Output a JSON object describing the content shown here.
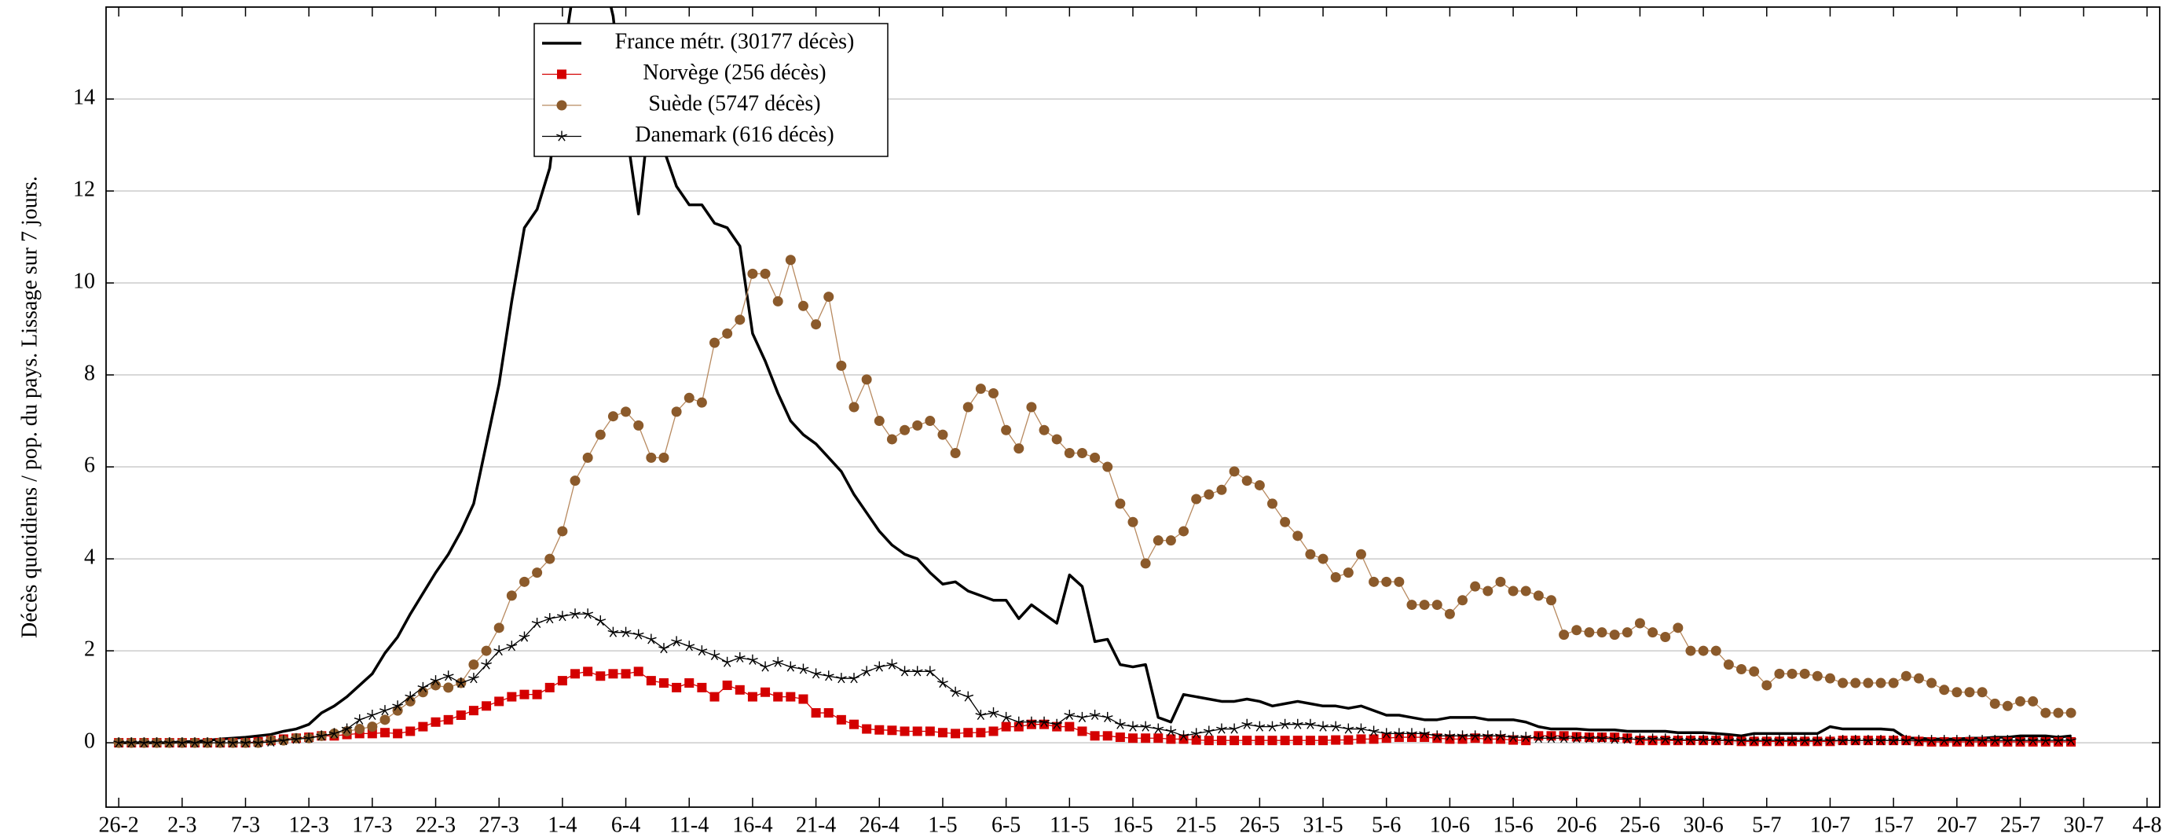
{
  "chart_data": {
    "type": "line",
    "y_label": "Décès quotidiens / pop. du pays. Lissage sur 7 jours.",
    "xlim": [
      -1,
      161
    ],
    "ylim": [
      -1.4,
      16
    ],
    "xticks": [
      {
        "value": 0,
        "label": "26-2"
      },
      {
        "value": 5,
        "label": "2-3"
      },
      {
        "value": 10,
        "label": "7-3"
      },
      {
        "value": 15,
        "label": "12-3"
      },
      {
        "value": 20,
        "label": "17-3"
      },
      {
        "value": 25,
        "label": "22-3"
      },
      {
        "value": 30,
        "label": "27-3"
      },
      {
        "value": 35,
        "label": "1-4"
      },
      {
        "value": 40,
        "label": "6-4"
      },
      {
        "value": 45,
        "label": "11-4"
      },
      {
        "value": 50,
        "label": "16-4"
      },
      {
        "value": 55,
        "label": "21-4"
      },
      {
        "value": 60,
        "label": "26-4"
      },
      {
        "value": 65,
        "label": "1-5"
      },
      {
        "value": 70,
        "label": "6-5"
      },
      {
        "value": 75,
        "label": "11-5"
      },
      {
        "value": 80,
        "label": "16-5"
      },
      {
        "value": 85,
        "label": "21-5"
      },
      {
        "value": 90,
        "label": "26-5"
      },
      {
        "value": 95,
        "label": "31-5"
      },
      {
        "value": 100,
        "label": "5-6"
      },
      {
        "value": 105,
        "label": "10-6"
      },
      {
        "value": 110,
        "label": "15-6"
      },
      {
        "value": 115,
        "label": "20-6"
      },
      {
        "value": 120,
        "label": "25-6"
      },
      {
        "value": 125,
        "label": "30-6"
      },
      {
        "value": 130,
        "label": "5-7"
      },
      {
        "value": 135,
        "label": "10-7"
      },
      {
        "value": 140,
        "label": "15-7"
      },
      {
        "value": 145,
        "label": "20-7"
      },
      {
        "value": 150,
        "label": "25-7"
      },
      {
        "value": 155,
        "label": "30-7"
      },
      {
        "value": 160,
        "label": "4-8"
      }
    ],
    "yticks": [
      0,
      2,
      4,
      6,
      8,
      10,
      12,
      14
    ],
    "grid": "y",
    "legend": "top",
    "x": [
      0,
      1,
      2,
      3,
      4,
      5,
      6,
      7,
      8,
      9,
      10,
      11,
      12,
      13,
      14,
      15,
      16,
      17,
      18,
      19,
      20,
      21,
      22,
      23,
      24,
      25,
      26,
      27,
      28,
      29,
      30,
      31,
      32,
      33,
      34,
      35,
      36,
      37,
      38,
      39,
      40,
      41,
      42,
      43,
      44,
      45,
      46,
      47,
      48,
      49,
      50,
      51,
      52,
      53,
      54,
      55,
      56,
      57,
      58,
      59,
      60,
      61,
      62,
      63,
      64,
      65,
      66,
      67,
      68,
      69,
      70,
      71,
      72,
      73,
      74,
      75,
      76,
      77,
      78,
      79,
      80,
      81,
      82,
      83,
      84,
      85,
      86,
      87,
      88,
      89,
      90,
      91,
      92,
      93,
      94,
      95,
      96,
      97,
      98,
      99,
      100,
      101,
      102,
      103,
      104,
      105,
      106,
      107,
      108,
      109,
      110,
      111,
      112,
      113,
      114,
      115,
      116,
      117,
      118,
      119,
      120,
      121,
      122,
      123,
      124,
      125,
      126,
      127,
      128,
      129,
      130,
      131,
      132,
      133,
      134,
      135,
      136,
      137,
      138,
      139,
      140,
      141,
      142,
      143,
      144,
      145,
      146,
      147,
      148,
      149,
      150,
      151,
      152,
      153,
      154
    ],
    "series": [
      {
        "name": "France métr. (30177 décès)",
        "color": "#000000",
        "marker": "none",
        "values": [
          0,
          0,
          0,
          0,
          0,
          0.02,
          0.03,
          0.05,
          0.08,
          0.1,
          0.12,
          0.15,
          0.18,
          0.25,
          0.3,
          0.4,
          0.65,
          0.8,
          1.0,
          1.25,
          1.5,
          1.95,
          2.3,
          2.8,
          3.25,
          3.7,
          4.1,
          4.6,
          5.2,
          6.5,
          7.8,
          9.6,
          11.2,
          11.6,
          12.5,
          14.8,
          16.6,
          17.3,
          17.0,
          15.8,
          13.4,
          11.5,
          14.0,
          12.9,
          12.1,
          11.7,
          11.7,
          11.3,
          11.2,
          10.8,
          8.9,
          8.3,
          7.6,
          7.0,
          6.7,
          6.5,
          6.2,
          5.9,
          5.4,
          5.0,
          4.6,
          4.3,
          4.1,
          4.0,
          3.7,
          3.45,
          3.5,
          3.3,
          3.2,
          3.1,
          3.1,
          2.7,
          3.0,
          2.8,
          2.6,
          3.65,
          3.4,
          2.2,
          2.25,
          1.7,
          1.65,
          1.7,
          0.55,
          0.45,
          1.05,
          1.0,
          0.95,
          0.9,
          0.9,
          0.95,
          0.9,
          0.8,
          0.85,
          0.9,
          0.85,
          0.8,
          0.8,
          0.75,
          0.8,
          0.7,
          0.6,
          0.6,
          0.55,
          0.5,
          0.5,
          0.55,
          0.55,
          0.55,
          0.5,
          0.5,
          0.5,
          0.45,
          0.35,
          0.3,
          0.3,
          0.3,
          0.28,
          0.28,
          0.28,
          0.25,
          0.25,
          0.25,
          0.25,
          0.22,
          0.22,
          0.22,
          0.2,
          0.18,
          0.15,
          0.2,
          0.2,
          0.2,
          0.2,
          0.2,
          0.2,
          0.35,
          0.3,
          0.3,
          0.3,
          0.3,
          0.28,
          0.1,
          0.1,
          0.08,
          0.08,
          0.08,
          0.1,
          0.1,
          0.12,
          0.12,
          0.15,
          0.15,
          0.15,
          0.12,
          0.15
        ]
      },
      {
        "name": "Norvège (256 décès)",
        "color": "#d40000",
        "marker": "square",
        "values": [
          0,
          0,
          0,
          0,
          0,
          0,
          0,
          0,
          0,
          0,
          0,
          0.02,
          0.05,
          0.08,
          0.1,
          0.12,
          0.15,
          0.15,
          0.18,
          0.2,
          0.2,
          0.22,
          0.2,
          0.25,
          0.35,
          0.45,
          0.5,
          0.6,
          0.7,
          0.8,
          0.9,
          1.0,
          1.05,
          1.05,
          1.2,
          1.35,
          1.5,
          1.55,
          1.45,
          1.5,
          1.5,
          1.55,
          1.35,
          1.3,
          1.2,
          1.3,
          1.2,
          1.0,
          1.25,
          1.15,
          1.0,
          1.1,
          1.0,
          1.0,
          0.95,
          0.65,
          0.65,
          0.5,
          0.4,
          0.3,
          0.28,
          0.27,
          0.25,
          0.25,
          0.25,
          0.22,
          0.2,
          0.22,
          0.22,
          0.25,
          0.35,
          0.35,
          0.4,
          0.4,
          0.35,
          0.35,
          0.25,
          0.15,
          0.15,
          0.12,
          0.1,
          0.1,
          0.1,
          0.08,
          0.08,
          0.06,
          0.05,
          0.05,
          0.05,
          0.05,
          0.05,
          0.05,
          0.05,
          0.05,
          0.05,
          0.05,
          0.06,
          0.06,
          0.08,
          0.08,
          0.1,
          0.12,
          0.12,
          0.12,
          0.1,
          0.08,
          0.08,
          0.1,
          0.08,
          0.08,
          0.06,
          0.05,
          0.15,
          0.15,
          0.15,
          0.13,
          0.12,
          0.12,
          0.12,
          0.1,
          0.05,
          0.05,
          0.05,
          0.05,
          0.05,
          0.05,
          0.05,
          0.05,
          0.03,
          0.03,
          0.03,
          0.03,
          0.03,
          0.03,
          0.03,
          0.03,
          0.05,
          0.05,
          0.05,
          0.05,
          0.05,
          0.05,
          0.03,
          0.02,
          0.02,
          0.02,
          0.02,
          0.02,
          0.02,
          0.02,
          0.02,
          0.02,
          0.02,
          0.02,
          0.02
        ]
      },
      {
        "name": "Suède (5747 décès)",
        "color": "#8b5a2b",
        "marker": "circle",
        "values": [
          0,
          0,
          0,
          0,
          0,
          0,
          0,
          0,
          0,
          0,
          0,
          0,
          0.05,
          0.05,
          0.1,
          0.1,
          0.15,
          0.2,
          0.25,
          0.3,
          0.35,
          0.5,
          0.7,
          0.9,
          1.1,
          1.25,
          1.2,
          1.3,
          1.7,
          2.0,
          2.5,
          3.2,
          3.5,
          3.7,
          4.0,
          4.6,
          5.7,
          6.2,
          6.7,
          7.1,
          7.2,
          6.9,
          6.2,
          6.2,
          7.2,
          7.5,
          7.4,
          8.7,
          8.9,
          9.2,
          10.2,
          10.2,
          9.6,
          10.5,
          9.5,
          9.1,
          9.7,
          8.2,
          7.3,
          7.9,
          7.0,
          6.6,
          6.8,
          6.9,
          7.0,
          6.7,
          6.3,
          7.3,
          7.7,
          7.6,
          6.8,
          6.4,
          7.3,
          6.8,
          6.6,
          6.3,
          6.3,
          6.2,
          6.0,
          5.2,
          4.8,
          3.9,
          4.4,
          4.4,
          4.6,
          5.3,
          5.4,
          5.5,
          5.9,
          5.7,
          5.6,
          5.2,
          4.8,
          4.5,
          4.1,
          4.0,
          3.6,
          3.7,
          4.1,
          3.5,
          3.5,
          3.5,
          3.0,
          3.0,
          3.0,
          2.8,
          3.1,
          3.4,
          3.3,
          3.5,
          3.3,
          3.3,
          3.2,
          3.1,
          2.35,
          2.45,
          2.4,
          2.4,
          2.35,
          2.4,
          2.6,
          2.4,
          2.3,
          2.5,
          2.0,
          2.0,
          2.0,
          1.7,
          1.6,
          1.55,
          1.25,
          1.5,
          1.5,
          1.5,
          1.45,
          1.4,
          1.3,
          1.3,
          1.3,
          1.3,
          1.3,
          1.45,
          1.4,
          1.3,
          1.15,
          1.1,
          1.1,
          1.1,
          0.85,
          0.8,
          0.9,
          0.9,
          0.65,
          0.65,
          0.65
        ]
      },
      {
        "name": "Danemark (616 décès)",
        "color": "#000000",
        "marker": "star",
        "values": [
          0,
          0,
          0,
          0,
          0,
          0,
          0,
          0,
          0,
          0,
          0,
          0,
          0.02,
          0.05,
          0.08,
          0.1,
          0.15,
          0.2,
          0.3,
          0.5,
          0.6,
          0.7,
          0.8,
          1.0,
          1.2,
          1.35,
          1.45,
          1.3,
          1.4,
          1.7,
          2.0,
          2.1,
          2.3,
          2.6,
          2.7,
          2.75,
          2.8,
          2.8,
          2.65,
          2.4,
          2.4,
          2.35,
          2.25,
          2.05,
          2.2,
          2.1,
          2.0,
          1.9,
          1.75,
          1.85,
          1.8,
          1.65,
          1.75,
          1.65,
          1.6,
          1.5,
          1.45,
          1.4,
          1.4,
          1.55,
          1.65,
          1.7,
          1.55,
          1.55,
          1.55,
          1.3,
          1.1,
          1.0,
          0.6,
          0.65,
          0.55,
          0.45,
          0.45,
          0.45,
          0.4,
          0.6,
          0.55,
          0.6,
          0.55,
          0.4,
          0.35,
          0.35,
          0.3,
          0.25,
          0.15,
          0.2,
          0.25,
          0.3,
          0.3,
          0.4,
          0.35,
          0.35,
          0.4,
          0.4,
          0.4,
          0.35,
          0.35,
          0.3,
          0.3,
          0.25,
          0.2,
          0.2,
          0.2,
          0.2,
          0.15,
          0.15,
          0.15,
          0.15,
          0.15,
          0.15,
          0.12,
          0.12,
          0.1,
          0.1,
          0.1,
          0.1,
          0.1,
          0.1,
          0.08,
          0.08,
          0.08,
          0.08,
          0.08,
          0.06,
          0.06,
          0.06,
          0.06,
          0.05,
          0.05,
          0.05,
          0.05,
          0.05,
          0.05,
          0.05,
          0.05,
          0.05,
          0.05,
          0.05,
          0.05,
          0.05,
          0.05,
          0.05,
          0.05,
          0.05,
          0.05,
          0.05,
          0.05,
          0.05,
          0.05,
          0.05,
          0.05,
          0.05,
          0.05,
          0.05,
          0.05
        ]
      }
    ]
  }
}
